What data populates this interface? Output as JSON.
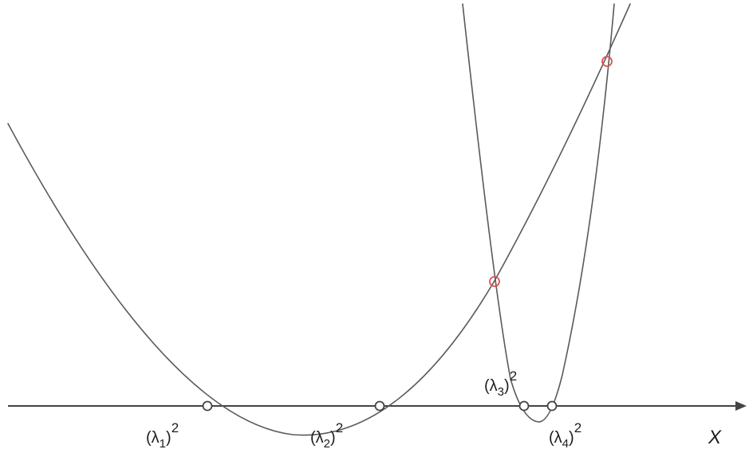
{
  "axis_label": "X",
  "root_labels": [
    {
      "base": "(λ",
      "sub": "1",
      "close": ")",
      "sup": "2"
    },
    {
      "base": "(λ",
      "sub": "2",
      "close": ")",
      "sup": "2"
    },
    {
      "base": "(λ",
      "sub": "3",
      "close": ")",
      "sup": "2"
    },
    {
      "base": "(λ",
      "sub": "4",
      "close": ")",
      "sup": "2"
    }
  ],
  "colors": {
    "curve": "#5a5a5a",
    "axis": "#444444",
    "root_marker": "#444444",
    "intersection_marker": "#e05050",
    "background": "#ffffff"
  }
}
